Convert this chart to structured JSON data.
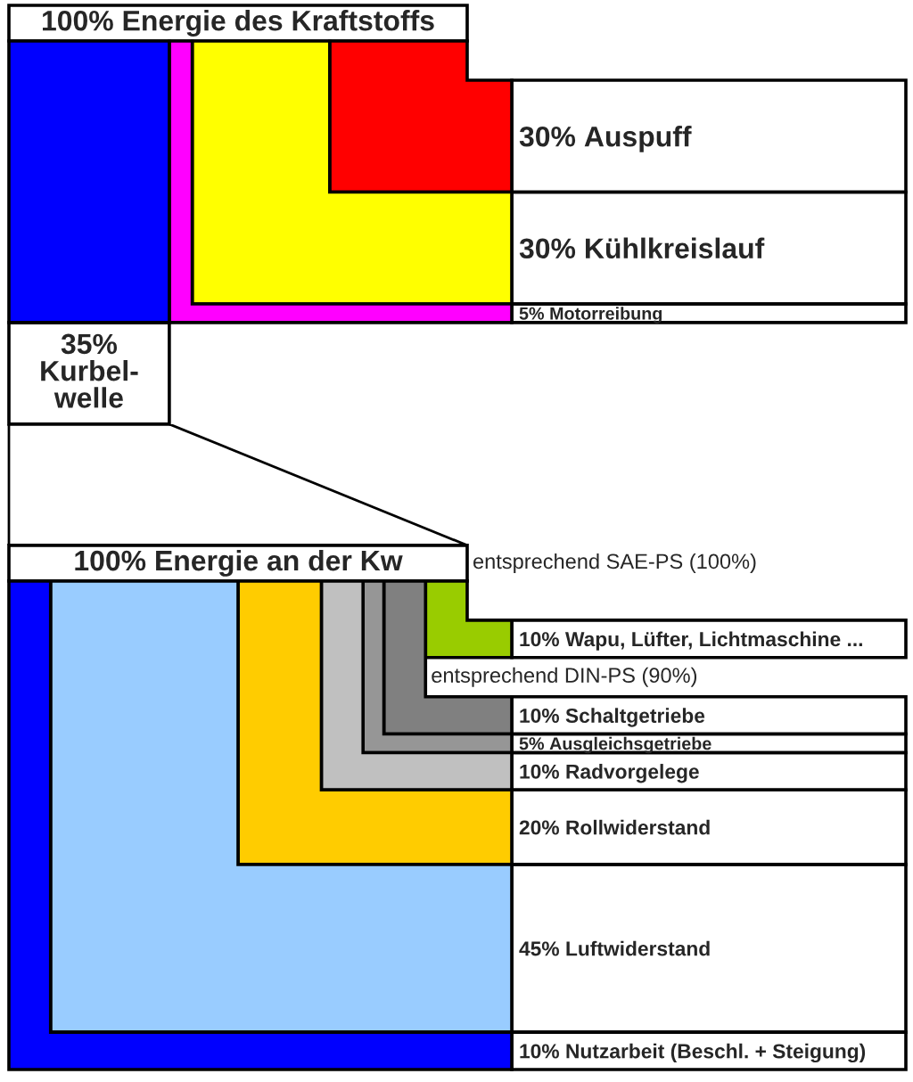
{
  "chart_data": [
    {
      "type": "other",
      "title": "100% Energie des Kraftstoffs",
      "categories": [
        "Auspuff",
        "Kühlkreislauf",
        "Motorreibung",
        "Kurbel-\nwelle"
      ],
      "values": [
        30,
        30,
        5,
        35
      ],
      "value_labels": [
        "30%",
        "30%",
        "5%",
        "35%"
      ],
      "colors": [
        "#ff0000",
        "#ffff00",
        "#ff00ff",
        "#0000ff"
      ]
    },
    {
      "type": "other",
      "title": "100% Energie an der Kw",
      "categories": [
        "Wapu, Lüfter, Lichtmaschine ...",
        "Schaltgetriebe",
        "Ausgleichsgetriebe",
        "Radvorgelege",
        "Rollwiderstand",
        "Luftwiderstand",
        "Nutzarbeit (Beschl. + Steigung)"
      ],
      "values": [
        10,
        10,
        5,
        10,
        20,
        45,
        10
      ],
      "value_labels": [
        "10%",
        "10%",
        "5%",
        "10%",
        "20%",
        "45%",
        "10%"
      ],
      "colors": [
        "#99cc00",
        "#808080",
        "#969696",
        "#c0c0c0",
        "#ffcc00",
        "#99ccff",
        "#0000ff"
      ],
      "annotations": [
        "entsprechend SAE-PS (100%)",
        "entsprechend DIN-PS (90%)"
      ]
    }
  ]
}
